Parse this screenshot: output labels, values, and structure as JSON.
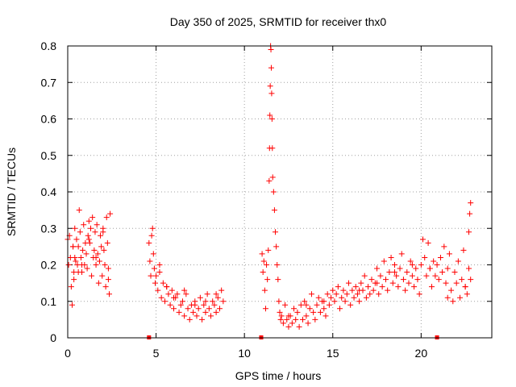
{
  "chart_data": {
    "type": "scatter",
    "title": "Day 350 of 2025, SRMTID for receiver thx0",
    "xlabel": "GPS time / hours",
    "ylabel": "SRMTID / TECUs",
    "xlim": [
      0,
      24
    ],
    "ylim": [
      0,
      0.8
    ],
    "xticks": [
      0,
      5,
      10,
      15,
      20
    ],
    "yticks": [
      0,
      0.1,
      0.2,
      0.3,
      0.4,
      0.5,
      0.6,
      0.7,
      0.8
    ],
    "xtick_labels": [
      "0",
      "5",
      "10",
      "15",
      "20"
    ],
    "ytick_labels": [
      "0",
      "0.1",
      "0.2",
      "0.3",
      "0.4",
      "0.5",
      "0.6",
      "0.7",
      "0.8"
    ],
    "grid": true,
    "marker": "plus",
    "color": "#ff0000",
    "gap_markers": [
      4.6,
      10.95,
      20.9
    ],
    "series": [
      {
        "name": "SRMTID",
        "x": [
          0.0,
          0.05,
          0.1,
          0.15,
          0.2,
          0.25,
          0.3,
          0.35,
          0.4,
          0.45,
          0.5,
          0.55,
          0.6,
          0.65,
          0.7,
          0.75,
          0.8,
          0.85,
          0.9,
          0.95,
          1.0,
          1.05,
          1.1,
          1.15,
          1.2,
          1.25,
          1.3,
          1.35,
          1.4,
          1.45,
          1.5,
          1.55,
          1.6,
          1.65,
          1.7,
          1.75,
          1.8,
          1.85,
          1.9,
          1.95,
          2.0,
          2.05,
          2.1,
          2.15,
          2.2,
          2.25,
          2.3,
          2.35,
          2.4,
          0.3,
          0.35,
          0.4,
          0.6,
          0.8,
          1.2,
          1.6,
          2.0,
          2.3,
          4.6,
          4.65,
          4.7,
          4.75,
          4.8,
          4.85,
          4.9,
          4.95,
          5.0,
          5.1,
          5.2,
          5.3,
          5.4,
          5.5,
          5.6,
          5.7,
          5.8,
          5.9,
          6.0,
          6.1,
          6.2,
          6.3,
          6.4,
          6.5,
          6.6,
          6.7,
          6.8,
          6.9,
          7.0,
          7.1,
          7.2,
          7.3,
          7.4,
          7.5,
          7.6,
          7.7,
          7.8,
          7.9,
          8.0,
          8.1,
          8.2,
          8.3,
          8.4,
          8.5,
          8.6,
          8.7,
          8.8,
          5.2,
          5.6,
          6.0,
          6.6,
          7.2,
          7.8,
          8.4,
          11.0,
          11.05,
          11.1,
          11.15,
          11.2,
          11.25,
          11.3,
          11.35,
          11.4,
          11.42,
          11.44,
          11.46,
          11.48,
          11.5,
          11.52,
          11.54,
          11.56,
          11.58,
          11.6,
          11.65,
          11.7,
          11.75,
          11.8,
          11.85,
          11.9,
          11.95,
          12.0,
          12.05,
          12.1,
          12.2,
          12.3,
          12.4,
          12.5,
          12.6,
          12.7,
          12.8,
          12.9,
          13.0,
          13.1,
          13.2,
          13.3,
          13.4,
          13.5,
          13.6,
          13.7,
          13.8,
          13.9,
          14.0,
          14.1,
          14.2,
          14.3,
          14.4,
          14.5,
          14.6,
          14.7,
          14.8,
          14.9,
          15.0,
          15.1,
          15.2,
          15.3,
          15.4,
          15.5,
          15.6,
          15.7,
          15.8,
          15.9,
          16.0,
          16.1,
          16.2,
          16.3,
          16.4,
          16.5,
          16.6,
          16.7,
          16.8,
          16.9,
          17.0,
          17.1,
          17.2,
          17.3,
          17.4,
          17.5,
          17.6,
          17.7,
          17.8,
          17.9,
          18.0,
          18.1,
          18.2,
          18.3,
          18.4,
          18.5,
          18.6,
          18.7,
          18.8,
          18.9,
          19.0,
          19.1,
          19.2,
          19.3,
          19.4,
          19.5,
          19.6,
          19.7,
          19.8,
          19.9,
          20.0,
          20.1,
          20.2,
          20.3,
          20.4,
          20.5,
          20.6,
          20.7,
          20.8,
          20.9,
          21.0,
          21.1,
          21.2,
          21.3,
          21.4,
          21.5,
          21.6,
          21.7,
          21.8,
          21.9,
          22.0,
          22.1,
          22.2,
          22.3,
          22.4,
          22.5,
          22.6,
          22.7,
          22.8,
          22.8,
          22.75,
          22.7,
          12.5,
          13.5,
          14.5,
          16.5,
          17.5,
          18.5,
          19.5,
          20.5,
          21.5,
          22.5
        ],
        "y": [
          0.27,
          0.2,
          0.28,
          0.22,
          0.14,
          0.09,
          0.25,
          0.18,
          0.3,
          0.21,
          0.27,
          0.2,
          0.25,
          0.35,
          0.29,
          0.22,
          0.18,
          0.24,
          0.31,
          0.2,
          0.26,
          0.23,
          0.19,
          0.28,
          0.32,
          0.26,
          0.3,
          0.17,
          0.33,
          0.22,
          0.24,
          0.29,
          0.2,
          0.31,
          0.23,
          0.15,
          0.21,
          0.28,
          0.25,
          0.17,
          0.29,
          0.24,
          0.2,
          0.14,
          0.33,
          0.26,
          0.19,
          0.12,
          0.34,
          0.25,
          0.16,
          0.22,
          0.18,
          0.2,
          0.27,
          0.22,
          0.3,
          0.16,
          0.26,
          0.21,
          0.17,
          0.28,
          0.3,
          0.23,
          0.19,
          0.15,
          0.17,
          0.13,
          0.2,
          0.11,
          0.15,
          0.1,
          0.14,
          0.12,
          0.09,
          0.13,
          0.08,
          0.11,
          0.12,
          0.07,
          0.09,
          0.1,
          0.06,
          0.12,
          0.08,
          0.05,
          0.09,
          0.07,
          0.1,
          0.06,
          0.08,
          0.11,
          0.05,
          0.09,
          0.07,
          0.12,
          0.08,
          0.06,
          0.1,
          0.09,
          0.07,
          0.11,
          0.08,
          0.13,
          0.1,
          0.18,
          0.14,
          0.11,
          0.13,
          0.09,
          0.1,
          0.12,
          0.23,
          0.18,
          0.21,
          0.13,
          0.08,
          0.2,
          0.16,
          0.24,
          0.43,
          0.52,
          0.61,
          0.69,
          0.8,
          0.79,
          0.74,
          0.67,
          0.6,
          0.52,
          0.44,
          0.4,
          0.35,
          0.29,
          0.25,
          0.2,
          0.16,
          0.1,
          0.07,
          0.05,
          0.06,
          0.04,
          0.09,
          0.05,
          0.03,
          0.06,
          0.04,
          0.08,
          0.05,
          0.07,
          0.03,
          0.09,
          0.05,
          0.1,
          0.06,
          0.04,
          0.08,
          0.12,
          0.07,
          0.05,
          0.09,
          0.11,
          0.07,
          0.1,
          0.08,
          0.06,
          0.12,
          0.09,
          0.11,
          0.13,
          0.1,
          0.12,
          0.14,
          0.08,
          0.11,
          0.13,
          0.1,
          0.12,
          0.15,
          0.09,
          0.13,
          0.11,
          0.14,
          0.12,
          0.1,
          0.15,
          0.13,
          0.17,
          0.11,
          0.14,
          0.12,
          0.16,
          0.13,
          0.15,
          0.19,
          0.12,
          0.17,
          0.14,
          0.21,
          0.16,
          0.13,
          0.18,
          0.22,
          0.15,
          0.2,
          0.17,
          0.14,
          0.19,
          0.23,
          0.16,
          0.13,
          0.18,
          0.15,
          0.21,
          0.17,
          0.14,
          0.19,
          0.16,
          0.12,
          0.2,
          0.27,
          0.22,
          0.17,
          0.26,
          0.19,
          0.14,
          0.21,
          0.17,
          0.2,
          0.16,
          0.22,
          0.18,
          0.25,
          0.15,
          0.19,
          0.23,
          0.13,
          0.1,
          0.18,
          0.15,
          0.21,
          0.11,
          0.16,
          0.24,
          0.14,
          0.12,
          0.19,
          0.16,
          0.37,
          0.34,
          0.29,
          0.06,
          0.09,
          0.1,
          0.13,
          0.15,
          0.18,
          0.2,
          0.19,
          0.11,
          0.14
        ]
      }
    ]
  }
}
